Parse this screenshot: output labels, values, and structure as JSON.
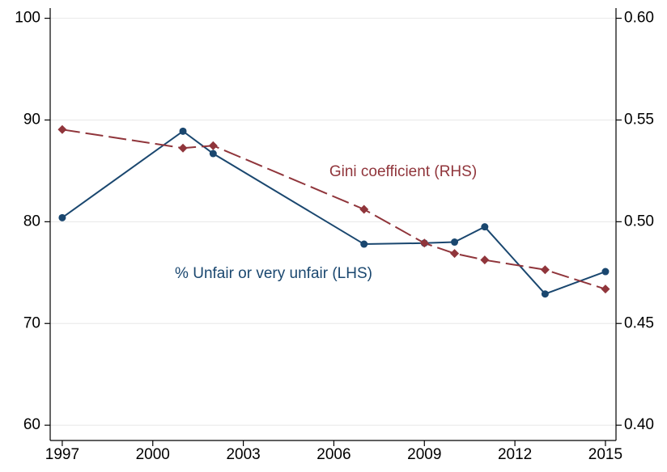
{
  "chart_data": {
    "type": "line",
    "x": [
      1997,
      2001,
      2002,
      2007,
      2009,
      2010,
      2011,
      2013,
      2015
    ],
    "xlim": [
      1996.6,
      2015.35
    ],
    "xticks": [
      1997,
      2000,
      2003,
      2006,
      2009,
      2012,
      2015
    ],
    "ylim": [
      58.5,
      101
    ],
    "yticks": [
      60,
      70,
      80,
      90,
      100
    ],
    "y2lim": [
      0.3925,
      0.605
    ],
    "y2ticks": [
      {
        "value": 0.4,
        "label": "0.40"
      },
      0.45,
      {
        "value": 0.5,
        "label": "0.50"
      },
      0.55,
      {
        "value": 0.6,
        "label": "0.60"
      }
    ],
    "grid": true,
    "series": [
      {
        "name": "% Unfair or very unfair (LHS)",
        "color": "#1a476f",
        "line_style": "solid",
        "marker": "circle",
        "values": [
          80.4,
          88.9,
          86.7,
          77.8,
          77.9,
          78.0,
          79.5,
          72.9,
          75.1
        ]
      },
      {
        "name": "Gini coefficient (RHS)",
        "color": "#90353b",
        "line_style": "dashed",
        "marker": "diamond",
        "axis": "y2",
        "values": [
          0.5453,
          0.5362,
          0.5374,
          0.5061,
          0.4895,
          0.4844,
          0.4812,
          0.4764,
          0.4669
        ]
      }
    ]
  }
}
